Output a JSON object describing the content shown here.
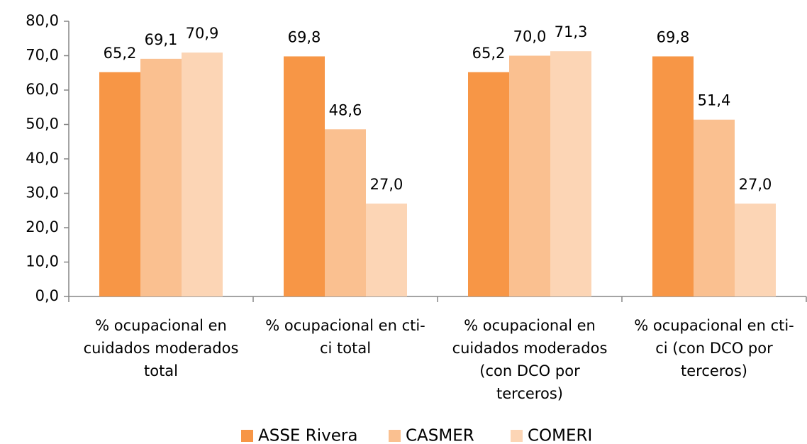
{
  "chart_data": {
    "type": "bar",
    "categories": [
      "% ocupacional en cuidados moderados total",
      "% ocupacional en cti-ci total",
      "% ocupacional en cuidados moderados (con DCO por terceros)",
      "% ocupacional en cti-ci  (con DCO por terceros)"
    ],
    "series": [
      {
        "name": "ASSE Rivera",
        "color": "#f79646",
        "values": [
          65.2,
          69.8,
          65.2,
          69.8
        ],
        "value_labels": [
          "65,2",
          "69,8",
          "65,2",
          "69,8"
        ]
      },
      {
        "name": "CASMER",
        "color": "#fac090",
        "values": [
          69.1,
          48.6,
          70.0,
          51.4
        ],
        "value_labels": [
          "69,1",
          "48,6",
          "70,0",
          "51,4"
        ]
      },
      {
        "name": "COMERI",
        "color": "#fcd5b5",
        "values": [
          70.9,
          27.0,
          71.3,
          27.0
        ],
        "value_labels": [
          "70,9",
          "27,0",
          "71,3",
          "27,0"
        ]
      }
    ],
    "ylim": [
      0,
      80
    ],
    "yticks": [
      {
        "value": 0,
        "label": "0,0"
      },
      {
        "value": 10,
        "label": "10,0"
      },
      {
        "value": 20,
        "label": "20,0"
      },
      {
        "value": 30,
        "label": "30,0"
      },
      {
        "value": 40,
        "label": "40,0"
      },
      {
        "value": 50,
        "label": "50,0"
      },
      {
        "value": 60,
        "label": "60,0"
      },
      {
        "value": 70,
        "label": "70,0"
      },
      {
        "value": 80,
        "label": "80,0"
      }
    ],
    "grid": false,
    "legend": "bottom"
  }
}
